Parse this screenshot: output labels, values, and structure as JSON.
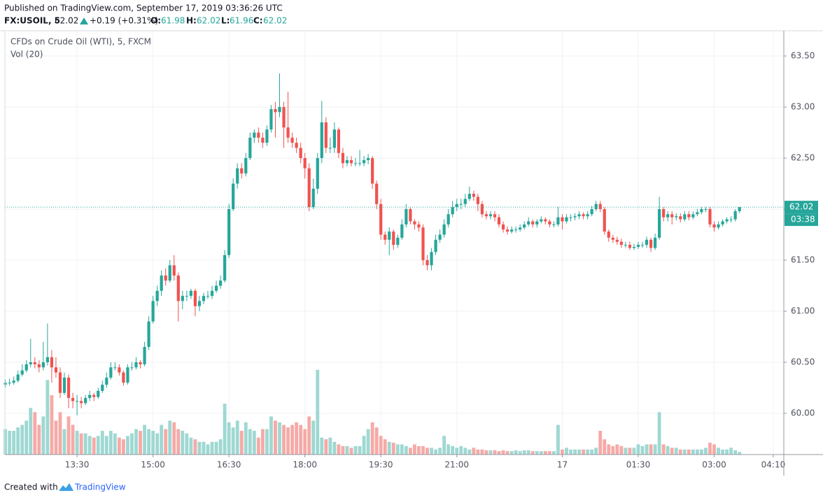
{
  "chart_data": {
    "type": "candlestick",
    "published": "Published on TradingView.com, September 17, 2019 03:36:26 UTC",
    "quote": {
      "symbol": "FX:USOIL, 5",
      "price": "62.02",
      "change": "+0.19 (+0.31%)",
      "o_label": "O:",
      "o": "61.98",
      "h_label": "H:",
      "h": "62.02",
      "l_label": "L:",
      "l": "61.96",
      "c_label": "C:",
      "c": "62.02"
    },
    "title": "CFDs on Crude Oil (WTI), 5, FXCM",
    "volume_label": "Vol (20)",
    "last_price": 62.02,
    "countdown": "03:38",
    "created_with": "Created with",
    "brand": "TradingView",
    "up_color": "#26a69a",
    "down_color": "#ef5350",
    "up_volume_color": "#9fd8d2",
    "down_volume_color": "#f5aaa7",
    "grid": true,
    "ylim": [
      59.596,
      63.747
    ],
    "yticks": [
      {
        "value": 60,
        "label": "60.00"
      },
      {
        "value": 60.5,
        "label": "60.50"
      },
      {
        "value": 61,
        "label": "61.00"
      },
      {
        "value": 61.5,
        "label": "61.50"
      },
      {
        "value": 62,
        "label": "62.00"
      },
      {
        "value": 62.5,
        "label": "62.50"
      },
      {
        "value": 63,
        "label": "63.00"
      },
      {
        "value": 63.5,
        "label": "63.50"
      }
    ],
    "xlim": [
      -0.1,
      184.5
    ],
    "xticks": [
      {
        "value": 17,
        "label": "13:30"
      },
      {
        "value": 35,
        "label": "15:00"
      },
      {
        "value": 53,
        "label": "16:30"
      },
      {
        "value": 71,
        "label": "18:00"
      },
      {
        "value": 89,
        "label": "19:30"
      },
      {
        "value": 107,
        "label": "21:00"
      },
      {
        "value": 132,
        "label": "17"
      },
      {
        "value": 150,
        "label": "01:30"
      },
      {
        "value": 168,
        "label": "03:00"
      },
      {
        "value": 182,
        "label": "04:10"
      }
    ],
    "volume_lim": [
      0,
      500
    ],
    "open": [
      60.28,
      60.3,
      60.3,
      60.32,
      60.38,
      60.42,
      60.48,
      60.5,
      60.48,
      60.45,
      60.5,
      60.55,
      60.45,
      60.4,
      60.2,
      60.35,
      60.15,
      60.12,
      60.12,
      60.1,
      60.15,
      60.18,
      60.16,
      60.22,
      60.28,
      60.35,
      60.45,
      60.45,
      60.4,
      60.3,
      60.45,
      60.45,
      60.5,
      60.48,
      60.65,
      60.9,
      61.1,
      61.2,
      61.35,
      61.3,
      61.45,
      61.35,
      61.1,
      61.15,
      61.15,
      61.2,
      61.05,
      61.1,
      61.15,
      61.15,
      61.2,
      61.25,
      61.3,
      61.55,
      62.0,
      62.25,
      62.4,
      62.35,
      62.5,
      62.7,
      62.75,
      62.7,
      62.65,
      62.78,
      62.98,
      62.95,
      63.0,
      62.8,
      62.7,
      62.65,
      62.6,
      62.5,
      62.4,
      62.02,
      62.2,
      62.5,
      62.85,
      62.6,
      62.6,
      62.78,
      62.55,
      62.45,
      62.48,
      62.45,
      62.45,
      62.45,
      62.48,
      62.5,
      62.25,
      62.05,
      61.75,
      61.7,
      61.78,
      61.65,
      61.72,
      61.85,
      62.0,
      61.88,
      61.85,
      61.82,
      61.5,
      61.45,
      61.58,
      61.7,
      61.75,
      61.85,
      61.95,
      62.02,
      62.05,
      62.05,
      62.1,
      62.15,
      62.12,
      62.05,
      61.95,
      61.93,
      61.95,
      61.92,
      61.85,
      61.8,
      61.78,
      61.8,
      61.8,
      61.82,
      61.85,
      61.88,
      61.85,
      61.88,
      61.9,
      61.88,
      61.85,
      61.85,
      61.92,
      61.88,
      61.92,
      61.92,
      61.93,
      61.95,
      61.93,
      61.95,
      62.0,
      62.05,
      62.0,
      61.78,
      61.72,
      61.7,
      61.68,
      61.65,
      61.65,
      61.62,
      61.63,
      61.65,
      61.65,
      61.7,
      61.62,
      61.72,
      62.0,
      61.92,
      61.95,
      61.92,
      61.93,
      61.9,
      61.95,
      61.92,
      61.95,
      61.97,
      62.0,
      62.0,
      61.85,
      61.82,
      61.85,
      61.88,
      61.9,
      61.9,
      61.98
    ],
    "high": [
      60.33,
      60.34,
      60.36,
      60.42,
      60.48,
      60.52,
      60.73,
      60.55,
      60.52,
      60.7,
      60.88,
      60.62,
      60.55,
      60.45,
      60.4,
      60.38,
      60.2,
      60.18,
      60.16,
      60.18,
      60.22,
      60.2,
      60.25,
      60.32,
      60.4,
      60.5,
      60.5,
      60.48,
      60.42,
      60.48,
      60.5,
      60.55,
      60.52,
      60.7,
      60.95,
      61.15,
      61.25,
      61.4,
      61.42,
      61.5,
      61.55,
      61.38,
      61.2,
      61.2,
      61.22,
      61.22,
      61.15,
      61.18,
      61.2,
      61.25,
      61.3,
      61.35,
      61.6,
      62.05,
      62.3,
      62.45,
      62.45,
      62.55,
      62.75,
      62.78,
      62.8,
      62.75,
      62.82,
      63.02,
      63.05,
      63.33,
      63.05,
      63.15,
      62.75,
      62.7,
      62.65,
      62.55,
      62.45,
      62.3,
      62.55,
      63.06,
      62.9,
      62.7,
      62.85,
      62.8,
      62.6,
      62.52,
      62.52,
      62.5,
      62.58,
      62.52,
      62.54,
      62.52,
      62.28,
      62.1,
      61.78,
      61.82,
      61.8,
      61.75,
      61.9,
      62.05,
      62.02,
      61.9,
      61.88,
      61.85,
      61.55,
      61.62,
      61.75,
      61.8,
      61.9,
      62.0,
      62.08,
      62.1,
      62.1,
      62.15,
      62.22,
      62.18,
      62.15,
      62.08,
      61.98,
      61.98,
      61.98,
      61.95,
      61.88,
      61.83,
      61.83,
      61.83,
      61.85,
      61.88,
      61.92,
      61.9,
      61.9,
      61.93,
      61.92,
      61.9,
      61.88,
      62.02,
      61.95,
      61.95,
      61.95,
      61.96,
      61.98,
      61.97,
      61.98,
      62.03,
      62.08,
      62.08,
      62.02,
      61.8,
      61.75,
      61.73,
      61.71,
      61.68,
      61.68,
      61.66,
      61.68,
      61.68,
      61.73,
      61.72,
      61.76,
      62.12,
      62.02,
      61.98,
      61.98,
      61.96,
      61.96,
      61.98,
      61.98,
      61.98,
      62.0,
      62.02,
      62.02,
      62.02,
      61.88,
      61.88,
      61.9,
      61.92,
      61.93,
      62.0,
      62.02
    ],
    "low": [
      60.25,
      60.27,
      60.28,
      60.3,
      60.36,
      60.4,
      60.45,
      60.44,
      60.4,
      60.42,
      60.47,
      60.3,
      60.35,
      60.15,
      60.18,
      60.05,
      60.05,
      59.98,
      60.05,
      60.08,
      60.12,
      60.12,
      60.14,
      60.2,
      60.25,
      60.33,
      60.42,
      60.37,
      60.27,
      60.28,
      60.42,
      60.43,
      60.44,
      60.46,
      60.62,
      60.88,
      61.05,
      61.15,
      61.25,
      61.28,
      61.3,
      60.9,
      61.02,
      61.1,
      61.12,
      60.95,
      61.0,
      61.07,
      61.12,
      61.12,
      61.18,
      61.22,
      61.28,
      61.52,
      61.98,
      62.2,
      62.3,
      62.32,
      62.48,
      62.65,
      62.65,
      62.6,
      62.62,
      62.75,
      62.7,
      62.9,
      62.6,
      62.65,
      62.6,
      62.55,
      62.45,
      62.3,
      61.98,
      62.0,
      62.15,
      62.45,
      62.55,
      62.55,
      62.55,
      62.5,
      62.4,
      62.42,
      62.42,
      62.42,
      62.42,
      62.42,
      62.44,
      62.2,
      62.0,
      61.7,
      61.65,
      61.55,
      61.6,
      61.62,
      61.7,
      61.82,
      61.85,
      61.8,
      61.78,
      61.45,
      61.4,
      61.4,
      61.55,
      61.67,
      61.72,
      61.82,
      61.92,
      61.98,
      62.0,
      62.02,
      62.08,
      62.08,
      61.98,
      61.92,
      61.9,
      61.9,
      61.88,
      61.82,
      61.77,
      61.75,
      61.76,
      61.77,
      61.78,
      61.8,
      61.83,
      61.82,
      61.82,
      61.86,
      61.85,
      61.82,
      61.82,
      61.83,
      61.8,
      61.86,
      61.88,
      61.89,
      61.9,
      61.9,
      61.9,
      61.93,
      61.98,
      61.97,
      61.75,
      61.68,
      61.67,
      61.65,
      61.62,
      61.62,
      61.6,
      61.6,
      61.61,
      61.62,
      61.62,
      61.58,
      61.6,
      61.7,
      61.88,
      61.88,
      61.85,
      61.89,
      61.87,
      61.88,
      61.89,
      61.9,
      61.93,
      61.95,
      61.97,
      61.82,
      61.78,
      61.8,
      61.83,
      61.86,
      61.87,
      61.88,
      61.96
    ],
    "close": [
      60.3,
      60.3,
      60.32,
      60.38,
      60.42,
      60.48,
      60.5,
      60.48,
      60.45,
      60.5,
      60.55,
      60.45,
      60.4,
      60.2,
      60.35,
      60.15,
      60.12,
      60.12,
      60.1,
      60.15,
      60.18,
      60.16,
      60.22,
      60.28,
      60.35,
      60.45,
      60.45,
      60.4,
      60.3,
      60.45,
      60.45,
      60.5,
      60.48,
      60.65,
      60.9,
      61.1,
      61.2,
      61.35,
      61.3,
      61.45,
      61.35,
      61.1,
      61.15,
      61.15,
      61.2,
      61.05,
      61.1,
      61.15,
      61.15,
      61.2,
      61.25,
      61.3,
      61.55,
      62.0,
      62.25,
      62.4,
      62.35,
      62.5,
      62.7,
      62.75,
      62.7,
      62.65,
      62.78,
      62.98,
      62.95,
      63.0,
      62.8,
      62.7,
      62.65,
      62.6,
      62.5,
      62.4,
      62.02,
      62.2,
      62.5,
      62.85,
      62.6,
      62.6,
      62.78,
      62.55,
      62.45,
      62.48,
      62.45,
      62.45,
      62.45,
      62.48,
      62.5,
      62.25,
      62.05,
      61.75,
      61.7,
      61.78,
      61.65,
      61.72,
      61.85,
      62.0,
      61.88,
      61.85,
      61.82,
      61.5,
      61.45,
      61.58,
      61.7,
      61.75,
      61.85,
      61.95,
      62.02,
      62.05,
      62.05,
      62.1,
      62.15,
      62.12,
      62.05,
      61.95,
      61.93,
      61.95,
      61.92,
      61.85,
      61.8,
      61.78,
      61.8,
      61.8,
      61.82,
      61.85,
      61.88,
      61.85,
      61.88,
      61.9,
      61.88,
      61.85,
      61.85,
      61.92,
      61.88,
      61.92,
      61.92,
      61.93,
      61.95,
      61.93,
      61.95,
      62.0,
      62.05,
      62.0,
      61.78,
      61.72,
      61.7,
      61.68,
      61.65,
      61.65,
      61.62,
      61.63,
      61.65,
      61.65,
      61.7,
      61.62,
      61.72,
      62.0,
      61.92,
      61.95,
      61.92,
      61.93,
      61.9,
      61.95,
      61.92,
      61.95,
      61.97,
      62.0,
      62.0,
      61.85,
      61.82,
      61.85,
      61.88,
      61.9,
      61.9,
      61.98,
      62.02
    ],
    "volume": [
      30,
      28,
      28,
      32,
      35,
      40,
      55,
      50,
      35,
      45,
      88,
      70,
      40,
      50,
      30,
      45,
      35,
      28,
      25,
      25,
      22,
      20,
      22,
      28,
      22,
      28,
      25,
      20,
      18,
      22,
      25,
      30,
      28,
      35,
      30,
      28,
      25,
      35,
      30,
      40,
      38,
      30,
      28,
      25,
      20,
      18,
      15,
      15,
      12,
      15,
      15,
      18,
      60,
      38,
      32,
      40,
      28,
      38,
      30,
      28,
      20,
      30,
      30,
      45,
      40,
      38,
      35,
      32,
      35,
      38,
      35,
      30,
      45,
      40,
      100,
      20,
      18,
      20,
      15,
      12,
      10,
      10,
      8,
      10,
      10,
      22,
      30,
      38,
      32,
      22,
      18,
      15,
      14,
      12,
      12,
      10,
      8,
      12,
      10,
      10,
      8,
      8,
      6,
      8,
      22,
      12,
      10,
      8,
      10,
      8,
      6,
      8,
      6,
      6,
      5,
      5,
      5,
      4,
      5,
      4,
      4,
      5,
      4,
      5,
      5,
      4,
      4,
      4,
      4,
      4,
      4,
      35,
      6,
      8,
      6,
      6,
      6,
      6,
      6,
      6,
      8,
      28,
      18,
      12,
      10,
      12,
      10,
      8,
      8,
      8,
      12,
      10,
      12,
      12,
      12,
      50,
      12,
      10,
      8,
      8,
      6,
      6,
      6,
      6,
      6,
      6,
      8,
      14,
      12,
      8,
      6,
      6,
      8,
      5,
      3
    ]
  }
}
